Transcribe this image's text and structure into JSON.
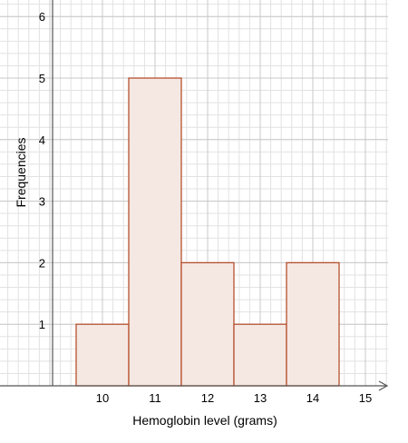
{
  "chart_data": {
    "type": "bar",
    "subtype": "histogram",
    "title": "",
    "xlabel": "Hemoglobin level (grams)",
    "ylabel": "Frequencies",
    "categories": [
      "10",
      "11",
      "12",
      "13",
      "14"
    ],
    "values": [
      1,
      5,
      2,
      1,
      2
    ],
    "x_ticks": [
      "10",
      "11",
      "12",
      "13",
      "14",
      "15"
    ],
    "y_ticks": [
      "1",
      "2",
      "3",
      "4",
      "5",
      "6"
    ],
    "xlim": [
      9,
      15.5
    ],
    "ylim": [
      0,
      6
    ],
    "grid": true,
    "bar_fill": "#f5e8e3",
    "bar_stroke": "#b5502e",
    "grid_minor_color": "#e2e2e2",
    "grid_major_color": "#c8c8c8"
  }
}
